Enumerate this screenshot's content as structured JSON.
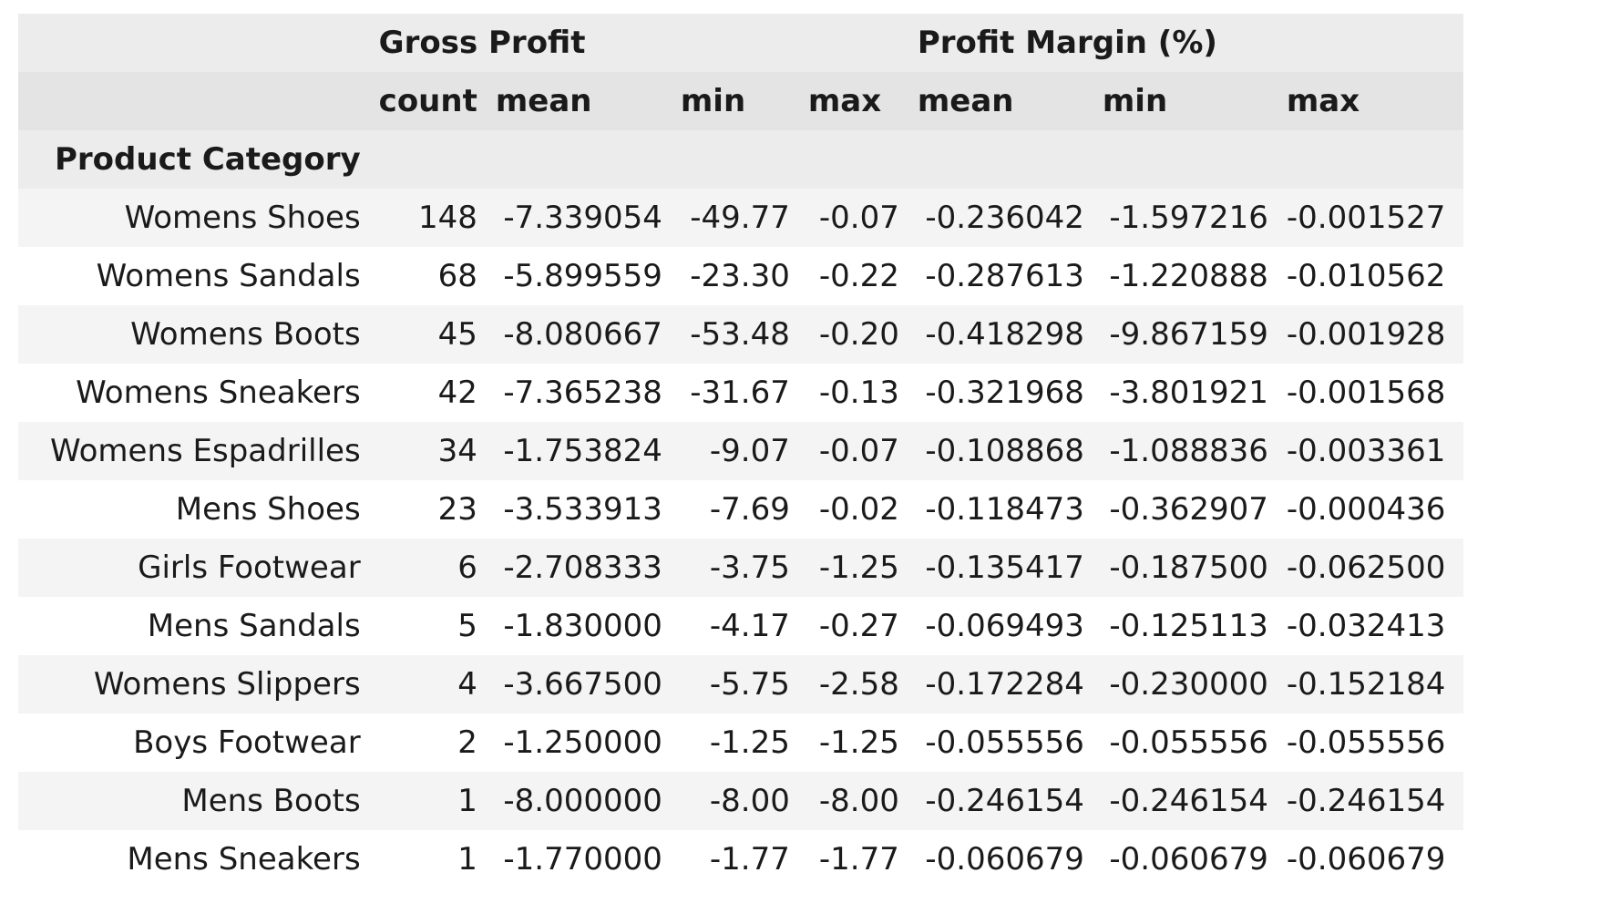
{
  "table": {
    "index_name": "Product Category",
    "groups": [
      {
        "label": "Gross Profit",
        "span": 4
      },
      {
        "label": "Profit Margin (%)",
        "span": 3
      }
    ],
    "subheaders": [
      "count",
      "mean",
      "min",
      "max",
      "mean",
      "min",
      "max"
    ],
    "rows": [
      {
        "category": "Womens Shoes",
        "values": [
          "148",
          "-7.339054",
          "-49.77",
          "-0.07",
          "-0.236042",
          "-1.597216",
          "-0.001527"
        ]
      },
      {
        "category": "Womens Sandals",
        "values": [
          "68",
          "-5.899559",
          "-23.30",
          "-0.22",
          "-0.287613",
          "-1.220888",
          "-0.010562"
        ]
      },
      {
        "category": "Womens Boots",
        "values": [
          "45",
          "-8.080667",
          "-53.48",
          "-0.20",
          "-0.418298",
          "-9.867159",
          "-0.001928"
        ]
      },
      {
        "category": "Womens Sneakers",
        "values": [
          "42",
          "-7.365238",
          "-31.67",
          "-0.13",
          "-0.321968",
          "-3.801921",
          "-0.001568"
        ]
      },
      {
        "category": "Womens Espadrilles",
        "values": [
          "34",
          "-1.753824",
          "-9.07",
          "-0.07",
          "-0.108868",
          "-1.088836",
          "-0.003361"
        ]
      },
      {
        "category": "Mens Shoes",
        "values": [
          "23",
          "-3.533913",
          "-7.69",
          "-0.02",
          "-0.118473",
          "-0.362907",
          "-0.000436"
        ]
      },
      {
        "category": "Girls Footwear",
        "values": [
          "6",
          "-2.708333",
          "-3.75",
          "-1.25",
          "-0.135417",
          "-0.187500",
          "-0.062500"
        ]
      },
      {
        "category": "Mens Sandals",
        "values": [
          "5",
          "-1.830000",
          "-4.17",
          "-0.27",
          "-0.069493",
          "-0.125113",
          "-0.032413"
        ]
      },
      {
        "category": "Womens Slippers",
        "values": [
          "4",
          "-3.667500",
          "-5.75",
          "-2.58",
          "-0.172284",
          "-0.230000",
          "-0.152184"
        ]
      },
      {
        "category": "Boys Footwear",
        "values": [
          "2",
          "-1.250000",
          "-1.25",
          "-1.25",
          "-0.055556",
          "-0.055556",
          "-0.055556"
        ]
      },
      {
        "category": "Mens Boots",
        "values": [
          "1",
          "-8.000000",
          "-8.00",
          "-8.00",
          "-0.246154",
          "-0.246154",
          "-0.246154"
        ]
      },
      {
        "category": "Mens Sneakers",
        "values": [
          "1",
          "-1.770000",
          "-1.77",
          "-1.77",
          "-0.060679",
          "-0.060679",
          "-0.060679"
        ]
      }
    ]
  }
}
